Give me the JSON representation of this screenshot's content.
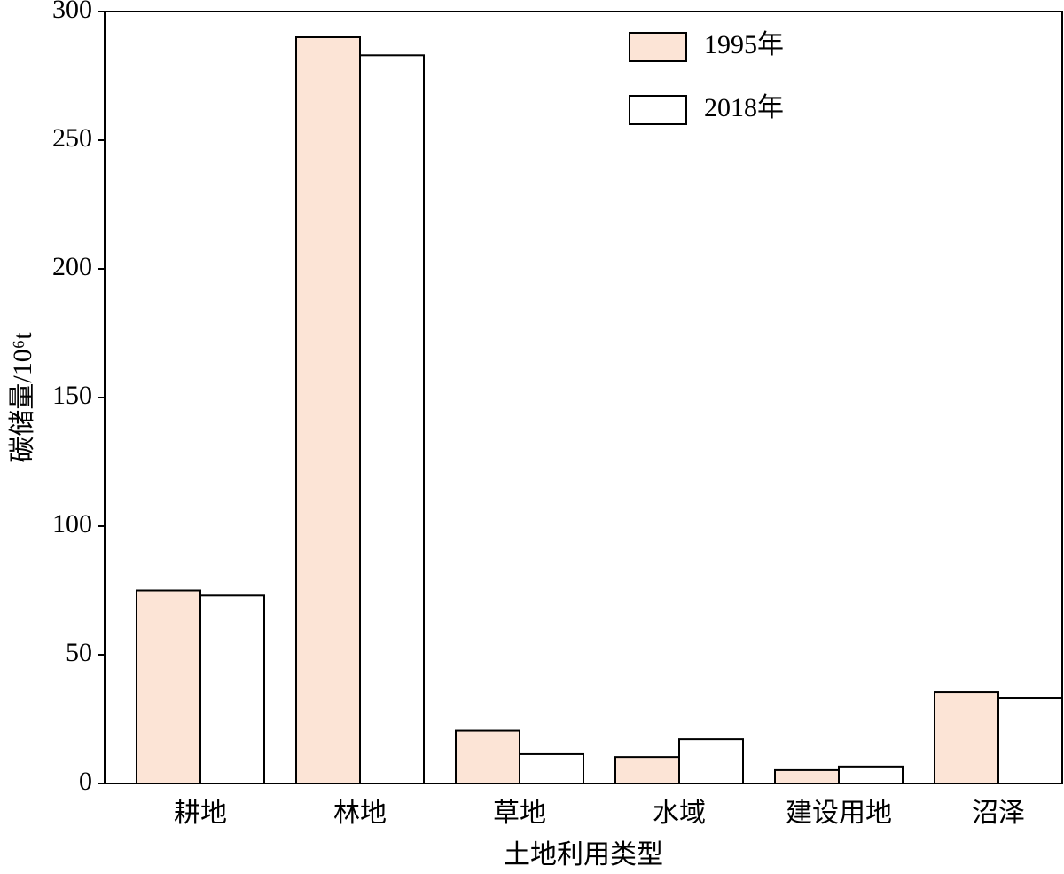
{
  "chart_data": {
    "type": "bar",
    "xlabel": "土地利用类型",
    "ylabel": "碳储量/10⁶t",
    "categories": [
      "耕地",
      "林地",
      "草地",
      "水域",
      "建设用地",
      "沼泽"
    ],
    "series": [
      {
        "name": "1995年",
        "color": "#fce4d6",
        "values": [
          75,
          290,
          20.5,
          10.3,
          5.2,
          35.5
        ]
      },
      {
        "name": "2018年",
        "color": "#ffffff",
        "values": [
          73,
          283,
          11.4,
          17.2,
          6.6,
          33.1
        ]
      }
    ],
    "ylim": [
      0,
      300
    ],
    "yticks": [
      0,
      50,
      100,
      150,
      200,
      250,
      300
    ],
    "legend": "upper right"
  }
}
